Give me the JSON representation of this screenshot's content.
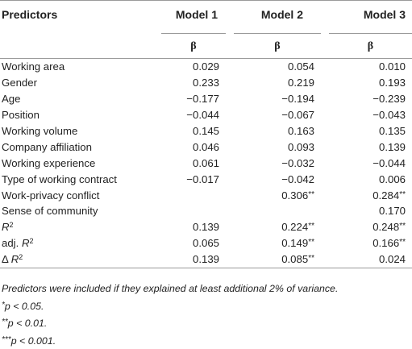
{
  "table": {
    "header": {
      "predictors": "Predictors",
      "models": [
        "Model 1",
        "Model 2",
        "Model 3"
      ],
      "beta": "β"
    },
    "rows": [
      {
        "label": "Working area",
        "values": [
          "0.029",
          "0.054",
          "0.010"
        ],
        "stars": [
          "",
          "",
          ""
        ]
      },
      {
        "label": "Gender",
        "values": [
          "0.233",
          "0.219",
          "0.193"
        ],
        "stars": [
          "",
          "",
          ""
        ]
      },
      {
        "label": "Age",
        "values": [
          "−0.177",
          "−0.194",
          "−0.239"
        ],
        "stars": [
          "",
          "",
          ""
        ]
      },
      {
        "label": "Position",
        "values": [
          "−0.044",
          "−0.067",
          "−0.043"
        ],
        "stars": [
          "",
          "",
          ""
        ]
      },
      {
        "label": "Working volume",
        "values": [
          "0.145",
          "0.163",
          "0.135"
        ],
        "stars": [
          "",
          "",
          ""
        ]
      },
      {
        "label": "Company affiliation",
        "values": [
          "0.046",
          "0.093",
          "0.139"
        ],
        "stars": [
          "",
          "",
          ""
        ]
      },
      {
        "label": "Working experience",
        "values": [
          "0.061",
          "−0.032",
          "−0.044"
        ],
        "stars": [
          "",
          "",
          ""
        ]
      },
      {
        "label": "Type of working contract",
        "values": [
          "−0.017",
          "−0.042",
          "0.006"
        ],
        "stars": [
          "",
          "",
          ""
        ]
      },
      {
        "label": "Work-privacy conflict",
        "values": [
          "",
          "0.306",
          "0.284"
        ],
        "stars": [
          "",
          "**",
          "**"
        ]
      },
      {
        "label": "Sense of community",
        "values": [
          "",
          "",
          "0.170"
        ],
        "stars": [
          "",
          "",
          ""
        ]
      }
    ],
    "fit_rows": [
      {
        "prefix": "",
        "label": "R",
        "sup": "2",
        "values": [
          "0.139",
          "0.224",
          "0.248"
        ],
        "stars": [
          "",
          "**",
          "**"
        ]
      },
      {
        "prefix": "adj. ",
        "label": "R",
        "sup": "2",
        "values": [
          "0.065",
          "0.149",
          "0.166"
        ],
        "stars": [
          "",
          "**",
          "**"
        ]
      },
      {
        "prefix": "Δ ",
        "label": "R",
        "sup": "2",
        "values": [
          "0.139",
          "0.085",
          "0.024"
        ],
        "stars": [
          "",
          "**",
          ""
        ]
      }
    ]
  },
  "notes": {
    "line1": "Predictors were included if they explained at least additional 2% of variance.",
    "line2_stars": "*",
    "line2_text": "p < 0.05.",
    "line3_stars": "**",
    "line3_text": "p < 0.01.",
    "line4_stars": "***",
    "line4_text": "p < 0.001."
  }
}
